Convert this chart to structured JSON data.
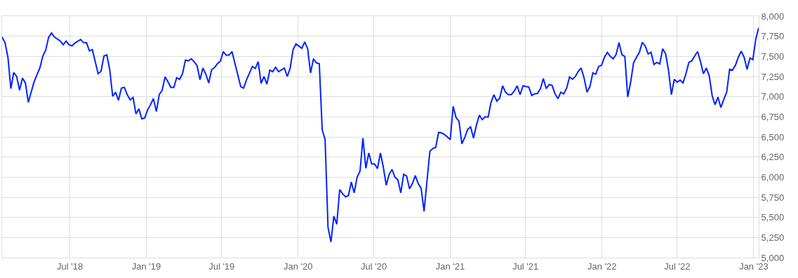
{
  "chart_data": {
    "type": "line",
    "grid": true,
    "marker": "none",
    "line_style": "solid",
    "xlim": [
      "2018-01-19",
      "2023-01-13"
    ],
    "ylim": [
      5000,
      8000
    ],
    "yticks": [
      {
        "value": 5000,
        "label": "5,000"
      },
      {
        "value": 5250,
        "label": "5,250"
      },
      {
        "value": 5500,
        "label": "5,500"
      },
      {
        "value": 5750,
        "label": "5,750"
      },
      {
        "value": 6000,
        "label": "6,000"
      },
      {
        "value": 6250,
        "label": "6,250"
      },
      {
        "value": 6500,
        "label": "6,500"
      },
      {
        "value": 6750,
        "label": "6,750"
      },
      {
        "value": 7000,
        "label": "7,000"
      },
      {
        "value": 7250,
        "label": "7,250"
      },
      {
        "value": 7500,
        "label": "7,500"
      },
      {
        "value": 7750,
        "label": "7,750"
      },
      {
        "value": 8000,
        "label": "8,000"
      }
    ],
    "xticks": [
      {
        "value": "2018-07-01",
        "label": "Jul '18"
      },
      {
        "value": "2019-01-01",
        "label": "Jan '19"
      },
      {
        "value": "2019-07-01",
        "label": "Jul '19"
      },
      {
        "value": "2020-01-01",
        "label": "Jan '20"
      },
      {
        "value": "2020-07-01",
        "label": "Jul '20"
      },
      {
        "value": "2021-01-01",
        "label": "Jan '21"
      },
      {
        "value": "2021-07-01",
        "label": "Jul '21"
      },
      {
        "value": "2022-01-01",
        "label": "Jan '22"
      },
      {
        "value": "2022-07-01",
        "label": "Jul '22"
      },
      {
        "value": "2023-01-01",
        "label": "Jan '23"
      }
    ],
    "x": [
      "2018-01-19",
      "2018-01-26",
      "2018-02-02",
      "2018-02-09",
      "2018-02-16",
      "2018-02-23",
      "2018-03-02",
      "2018-03-09",
      "2018-03-16",
      "2018-03-23",
      "2018-04-06",
      "2018-04-20",
      "2018-04-27",
      "2018-05-04",
      "2018-05-11",
      "2018-05-18",
      "2018-05-25",
      "2018-06-08",
      "2018-06-15",
      "2018-06-22",
      "2018-06-29",
      "2018-07-06",
      "2018-07-13",
      "2018-07-27",
      "2018-08-03",
      "2018-08-10",
      "2018-08-17",
      "2018-08-24",
      "2018-09-07",
      "2018-09-14",
      "2018-09-21",
      "2018-09-28",
      "2018-10-05",
      "2018-10-12",
      "2018-10-19",
      "2018-10-26",
      "2018-11-02",
      "2018-11-09",
      "2018-11-16",
      "2018-11-23",
      "2018-11-30",
      "2018-12-07",
      "2018-12-14",
      "2018-12-21",
      "2018-12-28",
      "2019-01-04",
      "2019-01-11",
      "2019-01-18",
      "2019-01-25",
      "2019-02-01",
      "2019-02-08",
      "2019-02-15",
      "2019-02-22",
      "2019-03-01",
      "2019-03-08",
      "2019-03-15",
      "2019-03-22",
      "2019-03-29",
      "2019-04-05",
      "2019-04-12",
      "2019-04-19",
      "2019-04-26",
      "2019-05-03",
      "2019-05-10",
      "2019-05-17",
      "2019-05-24",
      "2019-05-31",
      "2019-06-07",
      "2019-06-14",
      "2019-06-21",
      "2019-06-28",
      "2019-07-05",
      "2019-07-12",
      "2019-07-19",
      "2019-07-26",
      "2019-08-16",
      "2019-08-23",
      "2019-08-30",
      "2019-09-13",
      "2019-09-20",
      "2019-09-27",
      "2019-10-04",
      "2019-10-11",
      "2019-10-18",
      "2019-10-25",
      "2019-11-01",
      "2019-11-08",
      "2019-11-15",
      "2019-11-29",
      "2019-12-06",
      "2019-12-13",
      "2019-12-20",
      "2019-12-27",
      "2020-01-10",
      "2020-01-17",
      "2020-01-24",
      "2020-01-31",
      "2020-02-07",
      "2020-02-14",
      "2020-02-21",
      "2020-02-28",
      "2020-03-06",
      "2020-03-13",
      "2020-03-20",
      "2020-03-27",
      "2020-04-03",
      "2020-04-10",
      "2020-04-17",
      "2020-04-24",
      "2020-05-01",
      "2020-05-08",
      "2020-05-15",
      "2020-05-22",
      "2020-05-29",
      "2020-06-05",
      "2020-06-12",
      "2020-06-19",
      "2020-06-26",
      "2020-07-03",
      "2020-07-10",
      "2020-07-17",
      "2020-07-24",
      "2020-07-31",
      "2020-08-07",
      "2020-08-14",
      "2020-08-21",
      "2020-08-28",
      "2020-09-04",
      "2020-09-11",
      "2020-09-18",
      "2020-09-25",
      "2020-10-02",
      "2020-10-09",
      "2020-10-16",
      "2020-10-23",
      "2020-10-30",
      "2020-11-13",
      "2020-11-20",
      "2020-11-27",
      "2020-12-04",
      "2020-12-11",
      "2020-12-18",
      "2020-12-25",
      "2021-01-01",
      "2021-01-08",
      "2021-01-15",
      "2021-01-22",
      "2021-01-29",
      "2021-02-05",
      "2021-02-12",
      "2021-02-19",
      "2021-02-26",
      "2021-03-05",
      "2021-03-12",
      "2021-03-19",
      "2021-03-26",
      "2021-04-02",
      "2021-04-09",
      "2021-04-16",
      "2021-04-23",
      "2021-04-30",
      "2021-05-07",
      "2021-05-14",
      "2021-05-21",
      "2021-05-28",
      "2021-06-04",
      "2021-06-11",
      "2021-06-18",
      "2021-06-25",
      "2021-07-02",
      "2021-07-09",
      "2021-07-16",
      "2021-07-23",
      "2021-07-30",
      "2021-08-06",
      "2021-08-13",
      "2021-08-20",
      "2021-08-27",
      "2021-09-03",
      "2021-09-10",
      "2021-09-17",
      "2021-09-24",
      "2021-10-01",
      "2021-10-08",
      "2021-10-15",
      "2021-10-22",
      "2021-10-29",
      "2021-11-05",
      "2021-11-12",
      "2021-11-19",
      "2021-11-26",
      "2021-12-03",
      "2021-12-10",
      "2021-12-17",
      "2021-12-24",
      "2021-12-31",
      "2022-01-07",
      "2022-01-14",
      "2022-01-21",
      "2022-01-28",
      "2022-02-04",
      "2022-02-11",
      "2022-02-18",
      "2022-02-25",
      "2022-03-04",
      "2022-03-11",
      "2022-03-18",
      "2022-03-25",
      "2022-04-01",
      "2022-04-08",
      "2022-04-15",
      "2022-04-22",
      "2022-04-29",
      "2022-05-06",
      "2022-05-13",
      "2022-05-20",
      "2022-05-27",
      "2022-06-03",
      "2022-06-10",
      "2022-06-17",
      "2022-06-24",
      "2022-07-01",
      "2022-07-08",
      "2022-07-15",
      "2022-07-22",
      "2022-07-29",
      "2022-08-05",
      "2022-08-12",
      "2022-08-19",
      "2022-08-26",
      "2022-09-02",
      "2022-09-09",
      "2022-09-16",
      "2022-09-23",
      "2022-09-30",
      "2022-10-07",
      "2022-10-14",
      "2022-10-21",
      "2022-10-28",
      "2022-11-04",
      "2022-11-11",
      "2022-11-18",
      "2022-11-25",
      "2022-12-02",
      "2022-12-09",
      "2022-12-16",
      "2022-12-23",
      "2022-12-30",
      "2023-01-06",
      "2023-01-13"
    ],
    "series": [
      {
        "color": "#0022ff",
        "values": [
          7740,
          7670,
          7490,
          7100,
          7300,
          7250,
          7080,
          7230,
          7170,
          6930,
          7185,
          7360,
          7505,
          7580,
          7740,
          7790,
          7740,
          7690,
          7645,
          7690,
          7645,
          7630,
          7665,
          7710,
          7670,
          7670,
          7570,
          7585,
          7285,
          7315,
          7505,
          7520,
          7330,
          7005,
          7055,
          6955,
          7105,
          7115,
          7025,
          6960,
          6990,
          6785,
          6850,
          6725,
          6735,
          6835,
          6900,
          6975,
          6815,
          7025,
          7080,
          7245,
          7185,
          7115,
          7115,
          7235,
          7215,
          7285,
          7455,
          7445,
          7470,
          7435,
          7385,
          7210,
          7355,
          7280,
          7170,
          7335,
          7360,
          7410,
          7440,
          7560,
          7515,
          7515,
          7560,
          7125,
          7105,
          7210,
          7375,
          7350,
          7435,
          7165,
          7250,
          7155,
          7330,
          7310,
          7365,
          7310,
          7355,
          7250,
          7355,
          7585,
          7655,
          7600,
          7680,
          7595,
          7295,
          7470,
          7420,
          7410,
          6590,
          6465,
          5375,
          5195,
          5515,
          5415,
          5845,
          5795,
          5755,
          5770,
          5940,
          5805,
          6000,
          6075,
          6485,
          6110,
          6300,
          6165,
          6165,
          6105,
          6300,
          6125,
          5900,
          6035,
          6095,
          6000,
          5965,
          5805,
          6035,
          6015,
          5855,
          5920,
          6020,
          5920,
          5860,
          5575,
          6320,
          6355,
          6370,
          6555,
          6550,
          6530,
          6500,
          6465,
          6880,
          6740,
          6695,
          6415,
          6495,
          6595,
          6625,
          6485,
          6645,
          6770,
          6715,
          6750,
          6745,
          6925,
          7025,
          6945,
          6980,
          7135,
          7055,
          7025,
          7025,
          7070,
          7135,
          7025,
          7135,
          7125,
          7120,
          7015,
          7035,
          7040,
          7100,
          7225,
          7100,
          7150,
          7140,
          7035,
          6975,
          7055,
          7035,
          7105,
          7245,
          7215,
          7250,
          7315,
          7355,
          7230,
          7055,
          7125,
          7295,
          7280,
          7375,
          7390,
          7490,
          7550,
          7500,
          7470,
          7525,
          7670,
          7520,
          7500,
          6995,
          7180,
          7420,
          7490,
          7550,
          7675,
          7630,
          7530,
          7550,
          7400,
          7425,
          7405,
          7595,
          7535,
          7330,
          7025,
          7215,
          7180,
          7205,
          7170,
          7285,
          7425,
          7445,
          7505,
          7560,
          7435,
          7285,
          7355,
          7260,
          7015,
          6900,
          6995,
          6865,
          6965,
          7055,
          7340,
          7330,
          7390,
          7490,
          7565,
          7490,
          7340,
          7480,
          7460,
          7715,
          7855
        ]
      }
    ]
  }
}
